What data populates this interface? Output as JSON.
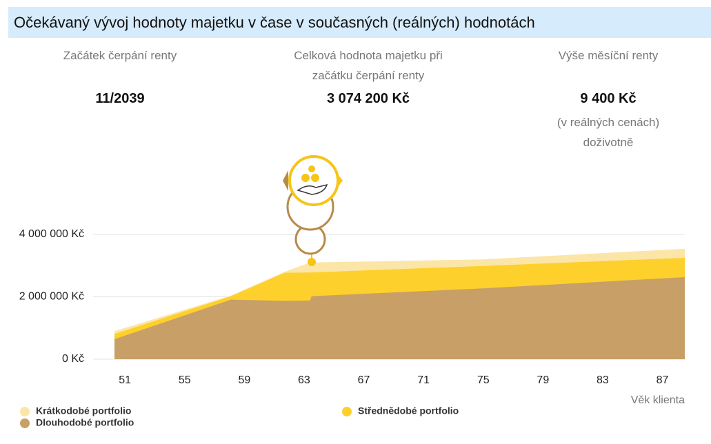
{
  "header": {
    "title": "Očekávaný vývoj hodnoty majetku v čase v současných (reálných) hodnotách"
  },
  "stats": [
    {
      "label": "Začátek čerpání renty",
      "value": "11/2039"
    },
    {
      "label": "Celková hodnota majetku při začátku čerpání renty",
      "value": "3 074 200 Kč"
    },
    {
      "label": "Výše měsíční renty",
      "value": "9 400 Kč",
      "note": "(v reálných cenách) doživotně"
    }
  ],
  "chart_data": {
    "type": "area",
    "x_label": "Věk klienta",
    "x": [
      50.3,
      58.1,
      61.7,
      63.4,
      63.5,
      75,
      88.5
    ],
    "xlim": [
      50.3,
      88.5
    ],
    "xticks": [
      51,
      55,
      59,
      63,
      67,
      71,
      75,
      79,
      83,
      87
    ],
    "ylim": [
      0,
      4000000
    ],
    "yticks": [
      {
        "value": 0,
        "label": "0 Kč"
      },
      {
        "value": 2000000,
        "label": "2 000 000 Kč"
      },
      {
        "value": 4000000,
        "label": "4 000 000 Kč"
      }
    ],
    "grid": true,
    "series": [
      {
        "name": "Krátkodobé portfolio",
        "color": "#fbe6a8",
        "values": [
          900000,
          2040000,
          2800000,
          3100000,
          3100000,
          3200000,
          3540000
        ]
      },
      {
        "name": "Střednědobé portfolio",
        "color": "#fdd02c",
        "values": [
          810000,
          2020000,
          2770000,
          2780000,
          2780000,
          2990000,
          3250000
        ]
      },
      {
        "name": "Dlouhodobé portfolio",
        "color": "#c89f66",
        "values": [
          640000,
          1910000,
          1870000,
          1880000,
          2020000,
          2270000,
          2630000
        ]
      }
    ]
  }
}
